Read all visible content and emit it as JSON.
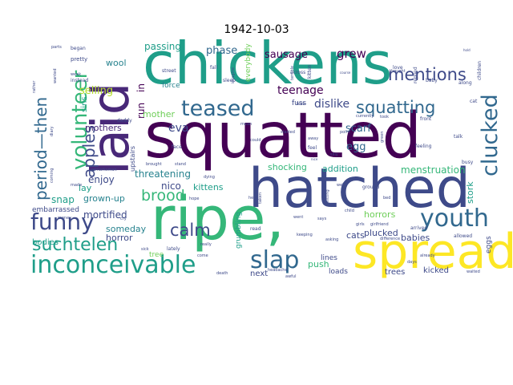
{
  "figure": {
    "title": "1942-10-03"
  },
  "palette": {
    "dark_purple": "#440154",
    "purple": "#482878",
    "indigo": "#3e4a89",
    "blue": "#31688e",
    "teal_blue": "#26828e",
    "teal": "#1f9e89",
    "green_teal": "#35b779",
    "green": "#6ece58",
    "lime": "#b5de2b",
    "yellow": "#fde725"
  },
  "words": [
    {
      "text": "chickens",
      "color": "teal"
    },
    {
      "text": "squatted",
      "color": "dark_purple"
    },
    {
      "text": "laid",
      "color": "purple"
    },
    {
      "text": "hatched",
      "color": "indigo"
    },
    {
      "text": "ripe,",
      "color": "green_teal"
    },
    {
      "text": "spread",
      "color": "yellow"
    },
    {
      "text": "inconceivable",
      "color": "teal"
    },
    {
      "text": "youth",
      "color": "blue"
    },
    {
      "text": "slap",
      "color": "blue"
    },
    {
      "text": "teased",
      "color": "blue"
    },
    {
      "text": "clucked",
      "color": "blue"
    },
    {
      "text": "volunteer",
      "color": "green_teal"
    },
    {
      "text": "funny",
      "color": "indigo"
    },
    {
      "text": "squatting",
      "color": "blue"
    },
    {
      "text": "mentions",
      "color": "indigo"
    },
    {
      "text": "apples",
      "color": "indigo"
    },
    {
      "text": "period—then",
      "color": "blue"
    },
    {
      "text": "suchtelen",
      "color": "teal"
    },
    {
      "text": "calm",
      "color": "indigo"
    },
    {
      "text": "brood",
      "color": "green_teal"
    },
    {
      "text": "sausage",
      "color": "dark_purple"
    },
    {
      "text": "grew",
      "color": "dark_purple"
    },
    {
      "text": "teenage",
      "color": "dark_purple"
    },
    {
      "text": "dislike",
      "color": "indigo"
    },
    {
      "text": "scarf",
      "color": "blue"
    },
    {
      "text": "egg",
      "color": "blue"
    },
    {
      "text": "phase",
      "color": "blue"
    },
    {
      "text": "passing",
      "color": "teal"
    },
    {
      "text": "selling",
      "color": "lime"
    },
    {
      "text": "wool",
      "color": "teal_blue"
    },
    {
      "text": "eva",
      "color": "indigo"
    },
    {
      "text": "run",
      "color": "dark_purple"
    },
    {
      "text": "in",
      "color": "dark_purple"
    },
    {
      "text": "mother",
      "color": "green"
    },
    {
      "text": "mothers",
      "color": "purple"
    },
    {
      "text": "threatening",
      "color": "teal_blue"
    },
    {
      "text": "nico",
      "color": "indigo"
    },
    {
      "text": "kittens",
      "color": "teal"
    },
    {
      "text": "enjoy",
      "color": "indigo"
    },
    {
      "text": "lay",
      "color": "teal"
    },
    {
      "text": "snap",
      "color": "teal"
    },
    {
      "text": "grown-up",
      "color": "teal_blue"
    },
    {
      "text": "mortified",
      "color": "indigo"
    },
    {
      "text": "someday",
      "color": "teal_blue"
    },
    {
      "text": "horror",
      "color": "indigo"
    },
    {
      "text": "shocking",
      "color": "green_teal"
    },
    {
      "text": "addition",
      "color": "teal"
    },
    {
      "text": "menstruation",
      "color": "green_teal"
    },
    {
      "text": "stork",
      "color": "teal"
    },
    {
      "text": "horrors",
      "color": "green"
    },
    {
      "text": "cats",
      "color": "indigo"
    },
    {
      "text": "plucked",
      "color": "indigo"
    },
    {
      "text": "babies",
      "color": "indigo"
    },
    {
      "text": "push",
      "color": "green_teal"
    },
    {
      "text": "lines",
      "color": "indigo"
    },
    {
      "text": "loads",
      "color": "indigo"
    },
    {
      "text": "kicked",
      "color": "indigo"
    },
    {
      "text": "trees",
      "color": "indigo"
    },
    {
      "text": "next",
      "color": "indigo"
    },
    {
      "text": "sins",
      "color": "teal"
    },
    {
      "text": "embarrassed",
      "color": "indigo"
    },
    {
      "text": "bodies",
      "color": "teal"
    },
    {
      "text": "fuss",
      "color": "indigo"
    },
    {
      "text": "force",
      "color": "teal_blue"
    },
    {
      "text": "everybody",
      "color": "green"
    },
    {
      "text": "eggs",
      "color": "indigo"
    },
    {
      "text": "tree",
      "color": "green"
    },
    {
      "text": "grumbling",
      "color": "teal"
    },
    {
      "text": "upstairs",
      "color": "indigo"
    },
    {
      "text": "pretty",
      "color": "indigo"
    },
    {
      "text": "instead",
      "color": "indigo"
    },
    {
      "text": "began",
      "color": "indigo"
    },
    {
      "text": "sleep",
      "color": "indigo"
    },
    {
      "text": "street",
      "color": "indigo"
    },
    {
      "text": "across",
      "color": "indigo"
    },
    {
      "text": "kitten",
      "color": "indigo"
    },
    {
      "text": "love",
      "color": "indigo"
    },
    {
      "text": "replied",
      "color": "indigo"
    },
    {
      "text": "baby",
      "color": "indigo"
    },
    {
      "text": "along",
      "color": "indigo"
    },
    {
      "text": "children",
      "color": "indigo"
    },
    {
      "text": "cat",
      "color": "indigo"
    },
    {
      "text": "hide",
      "color": "indigo"
    },
    {
      "text": "currently",
      "color": "indigo"
    },
    {
      "text": "took",
      "color": "indigo"
    },
    {
      "text": "front",
      "color": "indigo"
    },
    {
      "text": "talk",
      "color": "indigo"
    },
    {
      "text": "feeling",
      "color": "indigo"
    },
    {
      "text": "busy",
      "color": "indigo"
    },
    {
      "text": "face",
      "color": "indigo"
    },
    {
      "text": "started",
      "color": "indigo"
    },
    {
      "text": "away",
      "color": "indigo"
    },
    {
      "text": "feel",
      "color": "indigo"
    },
    {
      "text": "could",
      "color": "indigo"
    },
    {
      "text": "silly",
      "color": "indigo"
    },
    {
      "text": "daddy",
      "color": "indigo"
    },
    {
      "text": "remarksman",
      "color": "indigo"
    },
    {
      "text": "made",
      "color": "indigo"
    },
    {
      "text": "brought",
      "color": "indigo"
    },
    {
      "text": "stand",
      "color": "indigo"
    },
    {
      "text": "dying",
      "color": "indigo"
    },
    {
      "text": "hope",
      "color": "indigo"
    },
    {
      "text": "help",
      "color": "indigo"
    },
    {
      "text": "sitting",
      "color": "indigo"
    },
    {
      "text": "ground",
      "color": "indigo"
    },
    {
      "text": "well",
      "color": "indigo"
    },
    {
      "text": "child",
      "color": "indigo"
    },
    {
      "text": "girls",
      "color": "indigo"
    },
    {
      "text": "girlfriend",
      "color": "indigo"
    },
    {
      "text": "says",
      "color": "indigo"
    },
    {
      "text": "arrived",
      "color": "indigo"
    },
    {
      "text": "allowed",
      "color": "indigo"
    },
    {
      "text": "keeping",
      "color": "indigo"
    },
    {
      "text": "asking",
      "color": "indigo"
    },
    {
      "text": "difference",
      "color": "indigo"
    },
    {
      "text": "read",
      "color": "indigo"
    },
    {
      "text": "sick",
      "color": "indigo"
    },
    {
      "text": "lately",
      "color": "indigo"
    },
    {
      "text": "death",
      "color": "indigo"
    },
    {
      "text": "headache",
      "color": "indigo"
    },
    {
      "text": "awful",
      "color": "indigo"
    },
    {
      "text": "days",
      "color": "indigo"
    },
    {
      "text": "waited",
      "color": "indigo"
    },
    {
      "text": "money",
      "color": "indigo"
    },
    {
      "text": "cry",
      "color": "indigo"
    },
    {
      "text": "come",
      "color": "indigo"
    },
    {
      "text": "really",
      "color": "indigo"
    },
    {
      "text": "coming",
      "color": "indigo"
    },
    {
      "text": "diary",
      "color": "indigo"
    },
    {
      "text": "rather",
      "color": "indigo"
    },
    {
      "text": "wanted",
      "color": "indigo"
    },
    {
      "text": "weak",
      "color": "indigo"
    },
    {
      "text": "parts",
      "color": "indigo"
    },
    {
      "text": "imagine",
      "color": "indigo"
    },
    {
      "text": "terrible",
      "color": "indigo"
    },
    {
      "text": "fall",
      "color": "indigo"
    },
    {
      "text": "mean",
      "color": "indigo"
    },
    {
      "text": "taken",
      "color": "indigo"
    },
    {
      "text": "went",
      "color": "indigo"
    },
    {
      "text": "thought",
      "color": "indigo"
    },
    {
      "text": "already",
      "color": "indigo"
    },
    {
      "text": "point",
      "color": "indigo"
    },
    {
      "text": "bed",
      "color": "indigo"
    },
    {
      "text": "green",
      "color": "indigo"
    },
    {
      "text": "hold",
      "color": "indigo"
    },
    {
      "text": "course",
      "color": "indigo"
    },
    {
      "text": "nice",
      "color": "indigo"
    }
  ]
}
